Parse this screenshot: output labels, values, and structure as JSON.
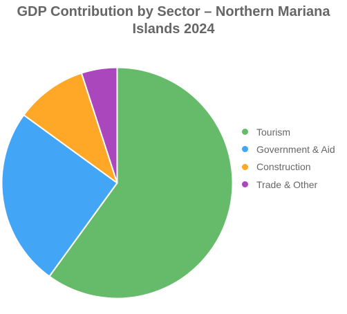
{
  "chart_data": {
    "type": "pie",
    "title_lines": [
      "GDP Contribution by Sector – Northern Mariana",
      "Islands 2024"
    ],
    "categories": [
      "Tourism",
      "Government & Aid",
      "Construction",
      "Trade & Other"
    ],
    "values": [
      60,
      25,
      10,
      5
    ],
    "colors": [
      "#66bb6a",
      "#42a5f5",
      "#ffa726",
      "#ab47bc"
    ],
    "legend_position": "right"
  }
}
